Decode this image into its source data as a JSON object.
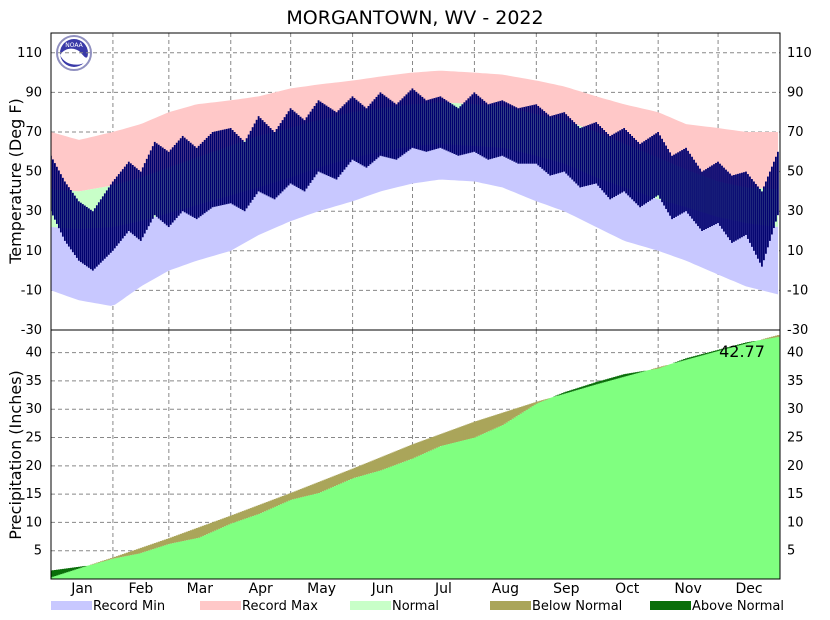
{
  "chart_data": [
    {
      "type": "bar",
      "title": "MORGANTOWN, WV - 2022",
      "ylabel": "Temperature (Deg F)",
      "ylim": [
        -30,
        120
      ],
      "yticks": [
        110,
        90,
        70,
        50,
        30,
        10,
        -10,
        -30
      ],
      "grid": true,
      "seasonal_bands": {
        "record_max": [
          [
            1,
            70
          ],
          [
            15,
            66
          ],
          [
            32,
            70
          ],
          [
            46,
            74
          ],
          [
            60,
            80
          ],
          [
            74,
            84
          ],
          [
            91,
            86
          ],
          [
            105,
            88
          ],
          [
            121,
            92
          ],
          [
            135,
            94
          ],
          [
            152,
            96
          ],
          [
            166,
            98
          ],
          [
            182,
            100
          ],
          [
            196,
            101
          ],
          [
            213,
            100
          ],
          [
            227,
            99
          ],
          [
            244,
            96
          ],
          [
            258,
            93
          ],
          [
            274,
            88
          ],
          [
            288,
            84
          ],
          [
            305,
            80
          ],
          [
            319,
            74
          ],
          [
            335,
            72
          ],
          [
            349,
            70
          ],
          [
            365,
            70
          ]
        ],
        "normal_high": [
          [
            1,
            41
          ],
          [
            15,
            40
          ],
          [
            32,
            43
          ],
          [
            46,
            47
          ],
          [
            60,
            52
          ],
          [
            74,
            57
          ],
          [
            91,
            63
          ],
          [
            105,
            68
          ],
          [
            121,
            72
          ],
          [
            135,
            76
          ],
          [
            152,
            80
          ],
          [
            166,
            82
          ],
          [
            182,
            84
          ],
          [
            196,
            85
          ],
          [
            213,
            84
          ],
          [
            227,
            83
          ],
          [
            244,
            79
          ],
          [
            258,
            76
          ],
          [
            274,
            70
          ],
          [
            288,
            64
          ],
          [
            305,
            57
          ],
          [
            319,
            51
          ],
          [
            335,
            45
          ],
          [
            349,
            42
          ],
          [
            365,
            41
          ]
        ],
        "normal_low": [
          [
            1,
            22
          ],
          [
            15,
            21
          ],
          [
            32,
            22
          ],
          [
            46,
            25
          ],
          [
            60,
            29
          ],
          [
            74,
            33
          ],
          [
            91,
            38
          ],
          [
            105,
            42
          ],
          [
            121,
            47
          ],
          [
            135,
            52
          ],
          [
            152,
            57
          ],
          [
            166,
            60
          ],
          [
            182,
            63
          ],
          [
            196,
            64
          ],
          [
            213,
            63
          ],
          [
            227,
            62
          ],
          [
            244,
            58
          ],
          [
            258,
            54
          ],
          [
            274,
            47
          ],
          [
            288,
            42
          ],
          [
            305,
            36
          ],
          [
            319,
            32
          ],
          [
            335,
            27
          ],
          [
            349,
            24
          ],
          [
            365,
            22
          ]
        ],
        "record_min": [
          [
            1,
            -10
          ],
          [
            15,
            -15
          ],
          [
            32,
            -18
          ],
          [
            46,
            -8
          ],
          [
            60,
            0
          ],
          [
            74,
            5
          ],
          [
            91,
            10
          ],
          [
            105,
            18
          ],
          [
            121,
            25
          ],
          [
            135,
            30
          ],
          [
            152,
            35
          ],
          [
            166,
            40
          ],
          [
            182,
            44
          ],
          [
            196,
            46
          ],
          [
            213,
            45
          ],
          [
            227,
            42
          ],
          [
            244,
            35
          ],
          [
            258,
            30
          ],
          [
            274,
            22
          ],
          [
            288,
            15
          ],
          [
            305,
            10
          ],
          [
            319,
            5
          ],
          [
            335,
            -2
          ],
          [
            349,
            -8
          ],
          [
            365,
            -12
          ]
        ]
      },
      "observed_high": [
        [
          1,
          58
        ],
        [
          8,
          45
        ],
        [
          15,
          35
        ],
        [
          22,
          30
        ],
        [
          32,
          45
        ],
        [
          40,
          55
        ],
        [
          46,
          50
        ],
        [
          53,
          65
        ],
        [
          60,
          60
        ],
        [
          67,
          68
        ],
        [
          74,
          62
        ],
        [
          82,
          70
        ],
        [
          91,
          72
        ],
        [
          98,
          65
        ],
        [
          105,
          78
        ],
        [
          113,
          70
        ],
        [
          121,
          82
        ],
        [
          128,
          76
        ],
        [
          135,
          86
        ],
        [
          144,
          80
        ],
        [
          152,
          88
        ],
        [
          159,
          82
        ],
        [
          166,
          90
        ],
        [
          174,
          84
        ],
        [
          182,
          92
        ],
        [
          189,
          86
        ],
        [
          196,
          88
        ],
        [
          205,
          82
        ],
        [
          213,
          90
        ],
        [
          220,
          84
        ],
        [
          227,
          86
        ],
        [
          235,
          82
        ],
        [
          244,
          84
        ],
        [
          251,
          78
        ],
        [
          258,
          80
        ],
        [
          266,
          72
        ],
        [
          274,
          75
        ],
        [
          281,
          68
        ],
        [
          288,
          72
        ],
        [
          296,
          64
        ],
        [
          305,
          70
        ],
        [
          312,
          58
        ],
        [
          319,
          62
        ],
        [
          327,
          50
        ],
        [
          335,
          55
        ],
        [
          342,
          48
        ],
        [
          349,
          50
        ],
        [
          357,
          40
        ],
        [
          365,
          60
        ]
      ],
      "observed_low": [
        [
          1,
          30
        ],
        [
          8,
          15
        ],
        [
          15,
          5
        ],
        [
          22,
          0
        ],
        [
          32,
          10
        ],
        [
          40,
          20
        ],
        [
          46,
          15
        ],
        [
          53,
          28
        ],
        [
          60,
          22
        ],
        [
          67,
          30
        ],
        [
          74,
          26
        ],
        [
          82,
          32
        ],
        [
          91,
          34
        ],
        [
          98,
          30
        ],
        [
          105,
          40
        ],
        [
          113,
          36
        ],
        [
          121,
          44
        ],
        [
          128,
          40
        ],
        [
          135,
          50
        ],
        [
          144,
          46
        ],
        [
          152,
          56
        ],
        [
          159,
          52
        ],
        [
          166,
          58
        ],
        [
          174,
          56
        ],
        [
          182,
          62
        ],
        [
          189,
          60
        ],
        [
          196,
          62
        ],
        [
          205,
          58
        ],
        [
          213,
          60
        ],
        [
          220,
          56
        ],
        [
          227,
          58
        ],
        [
          235,
          54
        ],
        [
          244,
          54
        ],
        [
          251,
          48
        ],
        [
          258,
          50
        ],
        [
          266,
          42
        ],
        [
          274,
          44
        ],
        [
          281,
          36
        ],
        [
          288,
          40
        ],
        [
          296,
          32
        ],
        [
          305,
          38
        ],
        [
          312,
          26
        ],
        [
          319,
          30
        ],
        [
          327,
          20
        ],
        [
          335,
          24
        ],
        [
          342,
          14
        ],
        [
          349,
          18
        ],
        [
          357,
          2
        ],
        [
          365,
          28
        ]
      ]
    },
    {
      "type": "area",
      "ylabel": "Precipitation (Inches)",
      "ylim": [
        0,
        44
      ],
      "yticks": [
        40,
        35,
        30,
        25,
        20,
        15,
        10,
        5
      ],
      "grid": true,
      "annotation": "42.77",
      "normal_cumulative": [
        [
          1,
          0.3
        ],
        [
          32,
          3.8
        ],
        [
          60,
          7.2
        ],
        [
          91,
          11.2
        ],
        [
          121,
          15.2
        ],
        [
          152,
          19.5
        ],
        [
          182,
          23.8
        ],
        [
          213,
          27.8
        ],
        [
          244,
          31.3
        ],
        [
          274,
          34.4
        ],
        [
          305,
          37.4
        ],
        [
          335,
          40.3
        ],
        [
          365,
          43.1
        ]
      ],
      "observed_cumulative": [
        [
          1,
          1.5
        ],
        [
          20,
          2.4
        ],
        [
          32,
          3.6
        ],
        [
          45,
          4.5
        ],
        [
          60,
          6.2
        ],
        [
          75,
          7.3
        ],
        [
          91,
          9.8
        ],
        [
          105,
          11.5
        ],
        [
          121,
          14.0
        ],
        [
          135,
          15.2
        ],
        [
          152,
          17.8
        ],
        [
          166,
          19.2
        ],
        [
          182,
          21.3
        ],
        [
          196,
          23.5
        ],
        [
          213,
          25.0
        ],
        [
          227,
          27.2
        ],
        [
          244,
          31.0
        ],
        [
          258,
          33.0
        ],
        [
          274,
          34.8
        ],
        [
          288,
          36.2
        ],
        [
          305,
          37.2
        ],
        [
          319,
          39.0
        ],
        [
          335,
          40.5
        ],
        [
          349,
          41.8
        ],
        [
          365,
          42.77
        ]
      ]
    }
  ],
  "months": [
    "Jan",
    "Feb",
    "Mar",
    "Apr",
    "May",
    "Jun",
    "Jul",
    "Aug",
    "Sep",
    "Oct",
    "Nov",
    "Dec"
  ],
  "month_start_days": [
    1,
    32,
    60,
    91,
    121,
    152,
    182,
    213,
    244,
    274,
    305,
    335,
    366
  ],
  "logo_text": "NOAA",
  "legend": {
    "placement": "bottom",
    "items": [
      {
        "label": "Record Min",
        "color": "#c8c8ff"
      },
      {
        "label": "Record Max",
        "color": "#ffc8c8"
      },
      {
        "label": "Normal",
        "color": "#c8ffc8"
      },
      {
        "label": "Below Normal",
        "color": "#aaa55a"
      },
      {
        "label": "Above Normal",
        "color": "#0a6e0a"
      }
    ]
  },
  "colors": {
    "observed": "#00006e",
    "precip_fill": "#80ff80",
    "below_normal": "#aaa55a",
    "above_normal": "#0a6e0a"
  }
}
